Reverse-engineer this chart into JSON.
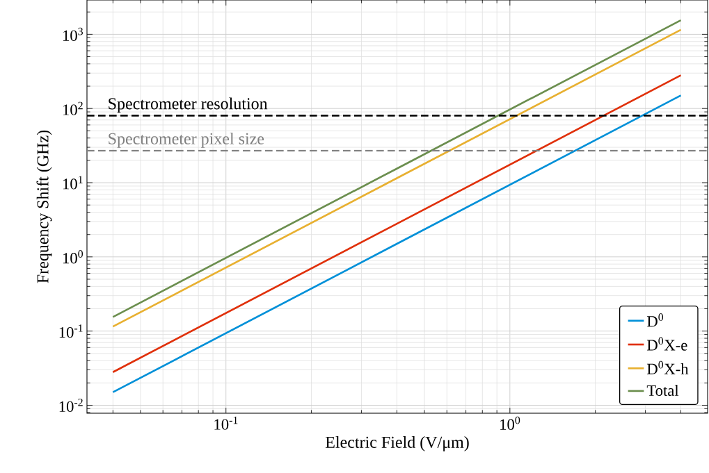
{
  "chart_data": {
    "type": "line",
    "xlabel": "Electric Field (V/μm)",
    "ylabel": "Frequency Shift (GHz)",
    "log": "xy",
    "grid": true,
    "legend": "bottom right",
    "line_style": "solid",
    "marker": "none",
    "xlim": [
      0.0324,
      4.97
    ],
    "ylim": [
      0.0078,
      2900
    ],
    "xticks": [
      {
        "value": 0.1,
        "label": "10$^{-1}$"
      },
      {
        "value": 1,
        "label": "10$^{0}$"
      }
    ],
    "yticks": [
      {
        "value": 0.01,
        "label": "10$^{-2}$"
      },
      {
        "value": 0.1,
        "label": "10$^{-1}$"
      },
      {
        "value": 1,
        "label": "10$^{0}$"
      },
      {
        "value": 10,
        "label": "10$^{1}$"
      },
      {
        "value": 100,
        "label": "10$^{2}$"
      },
      {
        "value": 1000,
        "label": "10$^{3}$"
      }
    ],
    "x": [
      0.04,
      0.4,
      4
    ],
    "series": [
      {
        "name": "D$^{0}$",
        "color": "#0090d8",
        "values": [
          0.015,
          1.5,
          150
        ]
      },
      {
        "name": "D$^{0}$X-e",
        "color": "#e0300a",
        "values": [
          0.028,
          2.8,
          280
        ]
      },
      {
        "name": "D$^{0}$X-h",
        "color": "#e8b030",
        "values": [
          0.115,
          11.5,
          1150
        ]
      },
      {
        "name": "Total",
        "color": "#6b8e4e",
        "values": [
          0.155,
          15.5,
          1550
        ]
      }
    ],
    "ref_lines": [
      {
        "axis": "y",
        "value": 80,
        "label": "Spectrometer resolution",
        "color": "#000000",
        "line_style": "dashed"
      },
      {
        "axis": "y",
        "value": 27,
        "label": "Spectrometer pixel size",
        "color": "#808080",
        "line_style": "dashed"
      }
    ]
  }
}
